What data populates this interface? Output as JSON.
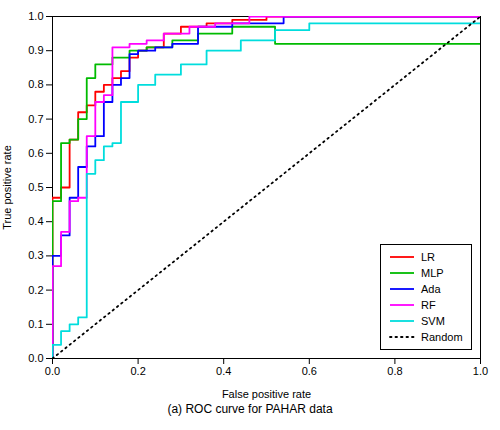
{
  "chart_data": {
    "type": "line",
    "xlabel": "False positive rate",
    "ylabel": "True positive rate",
    "caption": "(a) ROC curve for PAHAR data",
    "xlim": [
      0,
      1
    ],
    "ylim": [
      0,
      1
    ],
    "xticks": [
      {
        "value": 0,
        "label": "0.0"
      },
      0.2,
      0.4,
      0.6,
      0.8,
      {
        "value": 1.0,
        "label": "1.0"
      }
    ],
    "yticks": [
      {
        "value": 0,
        "label": "0.0"
      },
      0.1,
      0.2,
      0.3,
      0.4,
      0.5,
      0.6,
      0.7,
      0.8,
      0.9,
      {
        "value": 1.0,
        "label": "1.0"
      }
    ],
    "legend": "lower right",
    "grid": false,
    "series": [
      {
        "name": "LR",
        "color": "#ff0000",
        "line_style": "solid",
        "x": [
          0.0,
          0.0,
          0.02,
          0.02,
          0.04,
          0.04,
          0.06,
          0.06,
          0.08,
          0.08,
          0.1,
          0.1,
          0.12,
          0.12,
          0.14,
          0.14,
          0.16,
          0.16,
          0.18,
          0.18,
          0.2,
          0.2,
          0.22,
          0.22,
          0.26,
          0.26,
          0.3,
          0.3,
          0.36,
          0.36,
          0.42,
          0.42,
          0.5,
          0.5,
          0.58,
          0.58,
          0.66,
          0.66,
          1.0
        ],
        "values": [
          0.0,
          0.47,
          0.47,
          0.5,
          0.5,
          0.64,
          0.64,
          0.72,
          0.72,
          0.74,
          0.74,
          0.78,
          0.78,
          0.8,
          0.8,
          0.82,
          0.82,
          0.84,
          0.84,
          0.88,
          0.88,
          0.9,
          0.9,
          0.91,
          0.91,
          0.95,
          0.95,
          0.97,
          0.97,
          0.98,
          0.98,
          0.99,
          0.99,
          1.0,
          1.0,
          1.0,
          1.0,
          1.0,
          1.0
        ]
      },
      {
        "name": "MLP",
        "color": "#00bb00",
        "line_style": "solid",
        "x": [
          0.0,
          0.0,
          0.02,
          0.02,
          0.04,
          0.04,
          0.06,
          0.06,
          0.08,
          0.08,
          0.1,
          0.1,
          0.14,
          0.14,
          0.18,
          0.18,
          0.22,
          0.22,
          0.28,
          0.28,
          0.34,
          0.34,
          0.42,
          0.42,
          0.52,
          0.52,
          1.0
        ],
        "values": [
          0.0,
          0.46,
          0.46,
          0.63,
          0.63,
          0.64,
          0.64,
          0.7,
          0.7,
          0.82,
          0.82,
          0.86,
          0.86,
          0.88,
          0.88,
          0.9,
          0.9,
          0.91,
          0.91,
          0.93,
          0.93,
          0.95,
          0.95,
          0.97,
          0.97,
          0.92,
          0.92
        ]
      },
      {
        "name": "Ada",
        "color": "#0000ff",
        "line_style": "solid",
        "x": [
          0.0,
          0.0,
          0.02,
          0.02,
          0.04,
          0.04,
          0.06,
          0.06,
          0.08,
          0.08,
          0.1,
          0.1,
          0.12,
          0.12,
          0.14,
          0.14,
          0.16,
          0.16,
          0.18,
          0.18,
          0.2,
          0.2,
          0.24,
          0.24,
          0.28,
          0.28,
          0.34,
          0.34,
          0.42,
          0.42,
          0.54,
          0.54,
          1.0
        ],
        "values": [
          0.0,
          0.3,
          0.3,
          0.36,
          0.36,
          0.47,
          0.47,
          0.56,
          0.56,
          0.62,
          0.62,
          0.65,
          0.65,
          0.75,
          0.75,
          0.8,
          0.8,
          0.82,
          0.82,
          0.89,
          0.89,
          0.9,
          0.9,
          0.91,
          0.91,
          0.92,
          0.92,
          0.97,
          0.97,
          0.98,
          0.98,
          1.0,
          1.0
        ]
      },
      {
        "name": "RF",
        "color": "#ff00ff",
        "line_style": "solid",
        "x": [
          0.0,
          0.0,
          0.02,
          0.02,
          0.04,
          0.04,
          0.06,
          0.06,
          0.08,
          0.08,
          0.1,
          0.1,
          0.12,
          0.12,
          0.14,
          0.14,
          0.18,
          0.18,
          0.22,
          0.22,
          0.26,
          0.26,
          0.32,
          0.32,
          0.38,
          0.38,
          0.46,
          0.46,
          1.0
        ],
        "values": [
          0.0,
          0.27,
          0.27,
          0.37,
          0.37,
          0.46,
          0.46,
          0.47,
          0.47,
          0.65,
          0.65,
          0.75,
          0.75,
          0.77,
          0.77,
          0.91,
          0.91,
          0.92,
          0.92,
          0.93,
          0.93,
          0.95,
          0.95,
          0.97,
          0.97,
          0.98,
          0.98,
          1.0,
          1.0
        ]
      },
      {
        "name": "SVM",
        "color": "#00dddd",
        "line_style": "solid",
        "x": [
          0.0,
          0.0,
          0.02,
          0.02,
          0.04,
          0.04,
          0.06,
          0.06,
          0.08,
          0.08,
          0.1,
          0.1,
          0.12,
          0.12,
          0.14,
          0.14,
          0.16,
          0.16,
          0.2,
          0.2,
          0.24,
          0.24,
          0.3,
          0.3,
          0.36,
          0.36,
          0.44,
          0.44,
          0.52,
          0.52,
          0.6,
          0.6,
          1.0
        ],
        "values": [
          0.0,
          0.04,
          0.04,
          0.08,
          0.08,
          0.1,
          0.1,
          0.12,
          0.12,
          0.54,
          0.54,
          0.58,
          0.58,
          0.62,
          0.62,
          0.63,
          0.63,
          0.75,
          0.75,
          0.8,
          0.8,
          0.83,
          0.83,
          0.86,
          0.86,
          0.9,
          0.9,
          0.93,
          0.93,
          0.96,
          0.96,
          0.98,
          0.98
        ]
      },
      {
        "name": "Random",
        "color": "#000000",
        "line_style": "dotted",
        "x": [
          0,
          1
        ],
        "values": [
          0,
          1
        ]
      }
    ]
  }
}
